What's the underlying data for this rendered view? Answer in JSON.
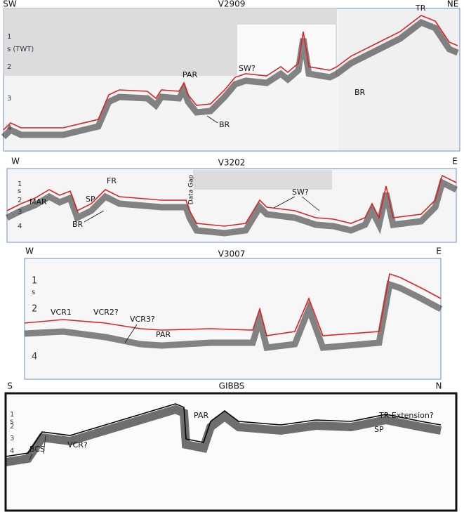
{
  "panels": [
    {
      "title": "V2909",
      "left": "SW",
      "right": "NE",
      "axis_label": "s (TWT)",
      "ticks": [
        "1",
        "2",
        "3",
        "4"
      ],
      "labels": [
        "PAR",
        "BR",
        "SW?",
        "TR",
        "BR"
      ]
    },
    {
      "title": "V3202",
      "left": "W",
      "right": "E",
      "axis_label": "s",
      "ticks": [
        "1",
        "2",
        "3",
        "4"
      ],
      "labels": [
        "MAR",
        "SP",
        "FR",
        "BR",
        "Data Gap",
        "SW?"
      ]
    },
    {
      "title": "V3007",
      "left": "W",
      "right": "E",
      "axis_label": "s",
      "ticks": [
        "1",
        "2",
        "4"
      ],
      "labels": [
        "VCR1",
        "VCR2?",
        "VCR3?",
        "PAR"
      ]
    },
    {
      "title": "GIBBS",
      "left": "S",
      "right": "N",
      "axis_label": "s",
      "ticks": [
        "1",
        "2",
        "3",
        "4"
      ],
      "labels": [
        "BCS",
        "VCR?",
        "PAR",
        "SP",
        "TR Extension?"
      ]
    }
  ]
}
